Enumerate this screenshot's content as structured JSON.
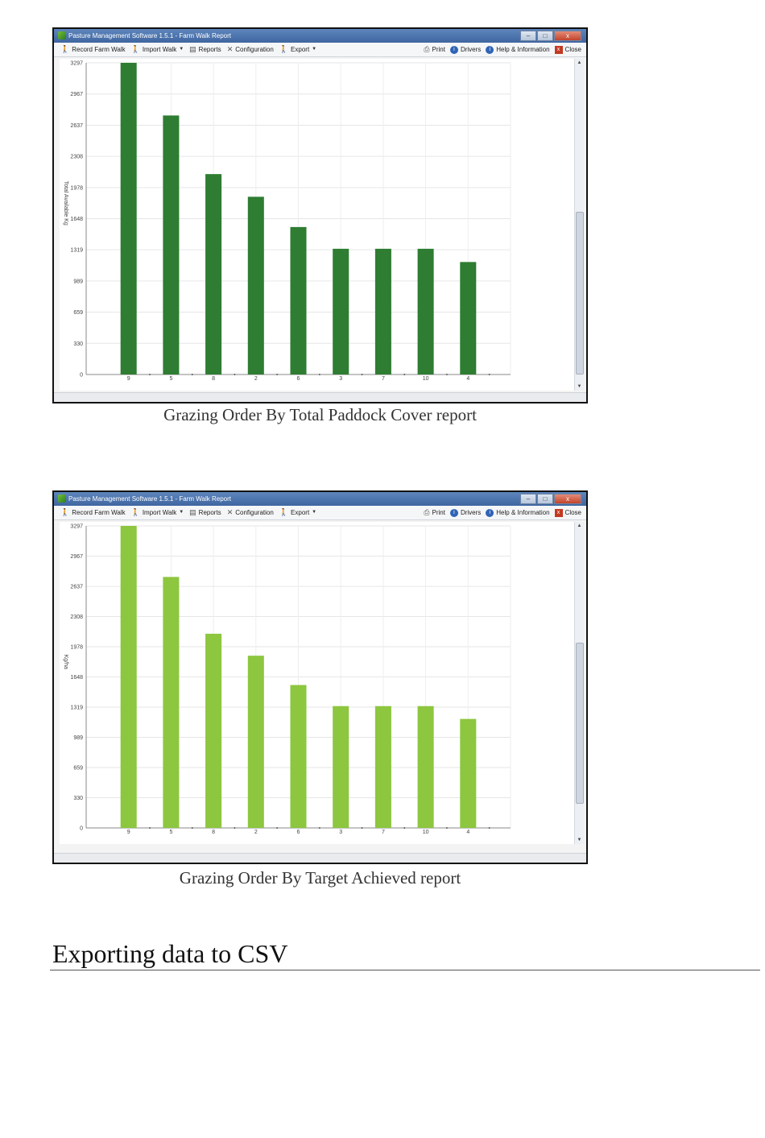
{
  "window": {
    "title": "Pasture Management Software 1.5.1 - Farm Walk Report",
    "buttons": {
      "minimize": "–",
      "maximize": "□",
      "close": "x"
    }
  },
  "toolbar": {
    "left": [
      {
        "label": "Record Farm Walk",
        "icon": "walker-icon"
      },
      {
        "label": "Import Walk",
        "icon": "walker-icon",
        "dropdown": true
      },
      {
        "label": "Reports",
        "icon": "report-icon"
      },
      {
        "label": "Configuration",
        "icon": "tools-icon"
      },
      {
        "label": "Export",
        "icon": "walker-icon",
        "dropdown": true
      }
    ],
    "right": [
      {
        "label": "Print",
        "icon": "printer-icon"
      },
      {
        "label": "Drivers",
        "icon": "info-icon"
      },
      {
        "label": "Help & Information",
        "icon": "info-icon"
      },
      {
        "label": "Close",
        "icon": "close-icon"
      }
    ]
  },
  "chart_data": [
    {
      "type": "bar",
      "caption": "Grazing Order By Total Paddock Cover report",
      "ylabel": "Total Available Kg",
      "color": "#2e7d32",
      "yticks": [
        0,
        330,
        659,
        989,
        1319,
        1648,
        1978,
        2308,
        2637,
        2967,
        3297
      ],
      "ylim": [
        0,
        3297
      ],
      "categories": [
        "9",
        "5",
        "8",
        "2",
        "6",
        "3",
        "7",
        "10",
        "4"
      ],
      "values": [
        3297,
        2740,
        2120,
        1880,
        1560,
        1330,
        1330,
        1330,
        1190
      ]
    },
    {
      "type": "bar",
      "caption": "Grazing Order By Target Achieved report",
      "ylabel": "Kg/ha",
      "color": "#8dc63f",
      "yticks": [
        0,
        330,
        659,
        989,
        1319,
        1648,
        1978,
        2308,
        2637,
        2967,
        3297
      ],
      "ylim": [
        0,
        3297
      ],
      "categories": [
        "9",
        "5",
        "8",
        "2",
        "6",
        "3",
        "7",
        "10",
        "4"
      ],
      "values": [
        3297,
        2740,
        2120,
        1880,
        1560,
        1330,
        1330,
        1330,
        1190
      ]
    }
  ],
  "section": {
    "heading": "Exporting data to CSV"
  }
}
